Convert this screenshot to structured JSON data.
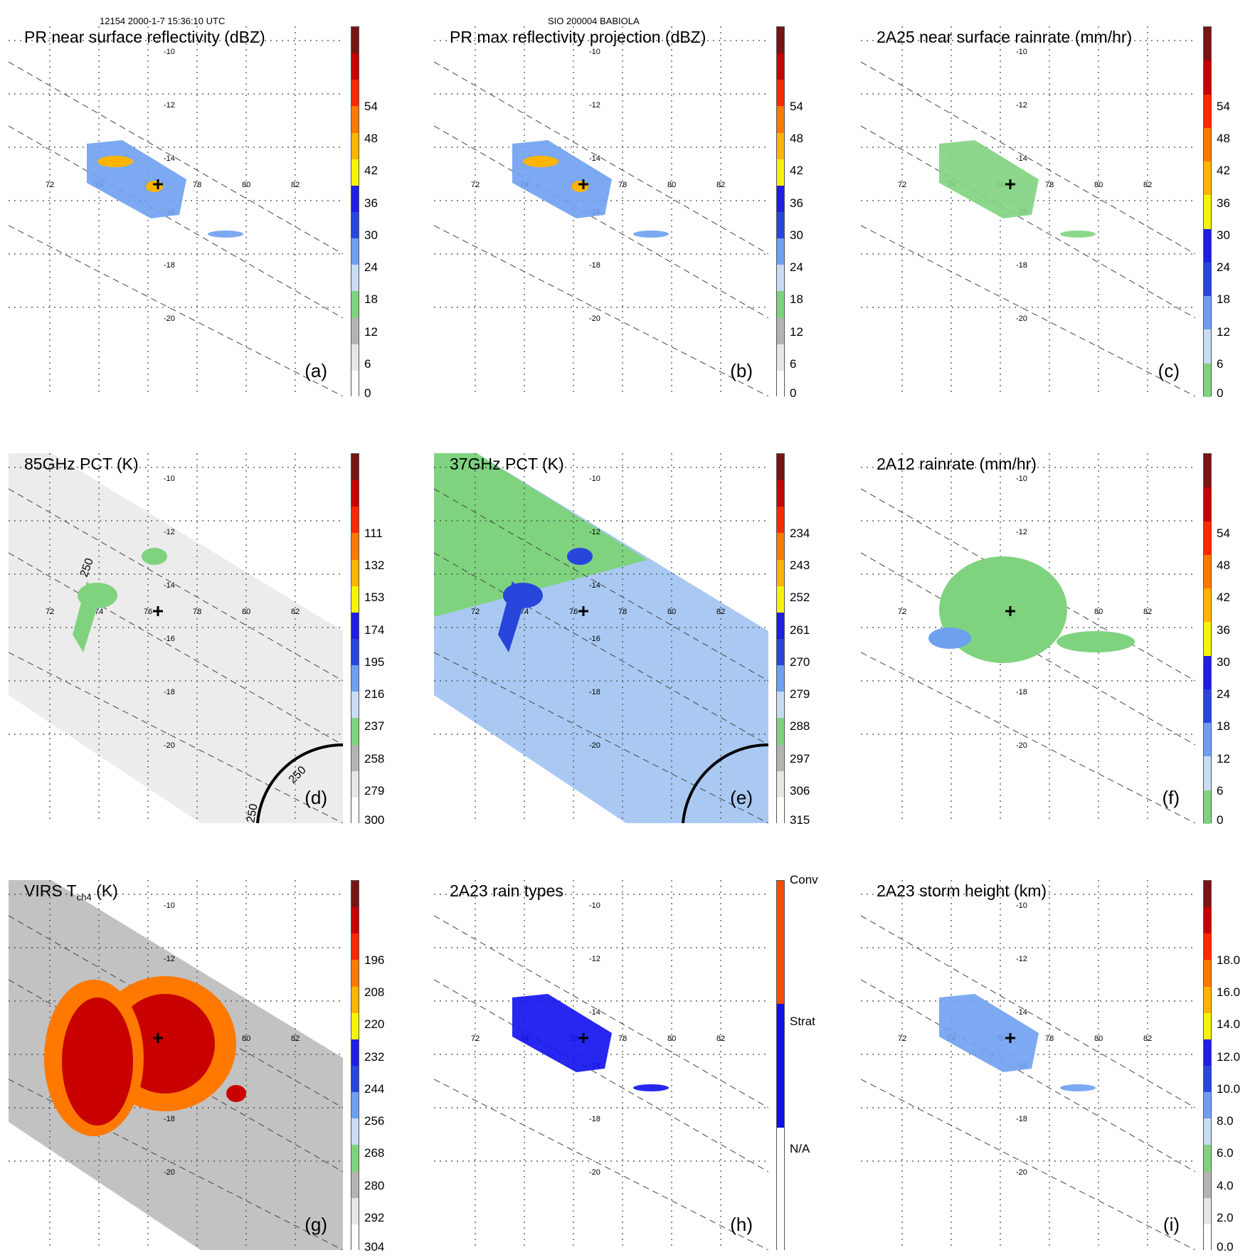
{
  "header": {
    "left": "12154 2000-1-7 15:36:10 UTC",
    "center": "SIO 200004 BABIOLA"
  },
  "lat_labels": [
    "-10",
    "-12",
    "-14",
    "-16",
    "-18",
    "-20"
  ],
  "lon_labels": [
    "72",
    "74",
    "76",
    "78",
    "80",
    "82"
  ],
  "panels": [
    {
      "id": "a",
      "title": "PR near surface reflectivity (dBZ)",
      "tag": "(a)",
      "colorbar": [
        "0",
        "6",
        "12",
        "18",
        "24",
        "30",
        "36",
        "42",
        "48",
        "54"
      ],
      "colors": [
        "#ffffff",
        "#e6e6e6",
        "#b4b4b4",
        "#7fd37f",
        "#c8dcf5",
        "#6ea0f0",
        "#2846dc",
        "#1e1ee6",
        "#f5f500",
        "#ffb400",
        "#ff7800",
        "#ff2800",
        "#c80000",
        "#781414"
      ]
    },
    {
      "id": "b",
      "title": "PR max reflectivity projection (dBZ)",
      "tag": "(b)",
      "colorbar": [
        "0",
        "6",
        "12",
        "18",
        "24",
        "30",
        "36",
        "42",
        "48",
        "54"
      ],
      "colors": [
        "#ffffff",
        "#e6e6e6",
        "#b4b4b4",
        "#7fd37f",
        "#c8dcf5",
        "#6ea0f0",
        "#2846dc",
        "#1e1ee6",
        "#f5f500",
        "#ffb400",
        "#ff7800",
        "#ff2800",
        "#c80000",
        "#781414"
      ]
    },
    {
      "id": "c",
      "title": "2A25 near surface rainrate (mm/hr)",
      "tag": "(c)",
      "colorbar": [
        "0",
        "6",
        "12",
        "18",
        "24",
        "30",
        "36",
        "42",
        "48",
        "54"
      ],
      "colors": [
        "#7fd37f",
        "#c8dcf5",
        "#6ea0f0",
        "#2846dc",
        "#1e1ee6",
        "#f5f500",
        "#ffb400",
        "#ff7800",
        "#ff2800",
        "#c80000",
        "#781414"
      ]
    },
    {
      "id": "d",
      "title": "85GHz PCT (K)",
      "tag": "(d)",
      "colorbar": [
        "300",
        "279",
        "258",
        "237",
        "216",
        "195",
        "174",
        "153",
        "132",
        "111"
      ],
      "colors": [
        "#ffffff",
        "#e6e6e6",
        "#b4b4b4",
        "#7fd37f",
        "#c8dcf5",
        "#6ea0f0",
        "#2846dc",
        "#1e1ee6",
        "#f5f500",
        "#ffb400",
        "#ff7800",
        "#ff2800",
        "#c80000",
        "#781414"
      ]
    },
    {
      "id": "e",
      "title": "37GHz PCT (K)",
      "tag": "(e)",
      "colorbar": [
        "315",
        "306",
        "297",
        "288",
        "279",
        "270",
        "261",
        "252",
        "243",
        "234"
      ],
      "colors": [
        "#ffffff",
        "#e6e6e6",
        "#b4b4b4",
        "#7fd37f",
        "#c8dcf5",
        "#6ea0f0",
        "#2846dc",
        "#1e1ee6",
        "#f5f500",
        "#ffb400",
        "#ff7800",
        "#ff2800",
        "#c80000",
        "#781414"
      ]
    },
    {
      "id": "f",
      "title": "2A12 rainrate (mm/hr)",
      "tag": "(f)",
      "colorbar": [
        "0",
        "6",
        "12",
        "18",
        "24",
        "30",
        "36",
        "42",
        "48",
        "54"
      ],
      "colors": [
        "#7fd37f",
        "#c8dcf5",
        "#6ea0f0",
        "#2846dc",
        "#1e1ee6",
        "#f5f500",
        "#ffb400",
        "#ff7800",
        "#ff2800",
        "#c80000",
        "#781414"
      ]
    },
    {
      "id": "g",
      "title": "VIRS T",
      "tag": "(g)",
      "title_sub": "ch4",
      "title_suffix": " (K)",
      "colorbar": [
        "304",
        "292",
        "280",
        "268",
        "256",
        "244",
        "232",
        "220",
        "208",
        "196"
      ],
      "colors": [
        "#ffffff",
        "#e6e6e6",
        "#b4b4b4",
        "#7fd37f",
        "#c8dcf5",
        "#6ea0f0",
        "#2846dc",
        "#1e1ee6",
        "#f5f500",
        "#ffb400",
        "#ff7800",
        "#ff2800",
        "#c80000",
        "#781414"
      ]
    },
    {
      "id": "h",
      "title": "2A23 rain types",
      "tag": "(h)",
      "colorbar": [
        "N/A",
        "Strat",
        "Conv"
      ],
      "colors": [
        "#ffffff",
        "#1010ee",
        "#ff4a00"
      ]
    },
    {
      "id": "i",
      "title": "2A23 storm height (km)",
      "tag": "(i)",
      "colorbar": [
        "0.0",
        "2.0",
        "4.0",
        "6.0",
        "8.0",
        "10.0",
        "12.0",
        "14.0",
        "16.0",
        "18.0"
      ],
      "colors": [
        "#ffffff",
        "#e6e6e6",
        "#b4b4b4",
        "#7fd37f",
        "#c8dcf5",
        "#6ea0f0",
        "#2846dc",
        "#1e1ee6",
        "#f5f500",
        "#ffb400",
        "#ff7800",
        "#ff2800",
        "#c80000",
        "#781414"
      ]
    }
  ],
  "contour_labels": {
    "d1": "250",
    "d2": "250",
    "d3": "250"
  }
}
